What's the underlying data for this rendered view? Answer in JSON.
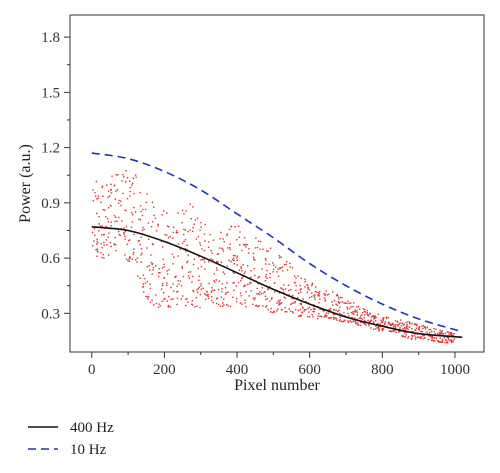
{
  "chart_data": {
    "type": "scatter",
    "xlabel": "Pixel number",
    "ylabel": "Power (a.u.)",
    "xlim": [
      -60,
      1080
    ],
    "ylim": [
      0.09,
      1.92
    ],
    "xticks": [
      0,
      200,
      400,
      600,
      800,
      1000
    ],
    "xtick_labels": [
      "0",
      "200",
      "400",
      "600",
      "800",
      "1000"
    ],
    "yticks": [
      0.3,
      0.6,
      0.9,
      1.2,
      1.5,
      1.8
    ],
    "ytick_labels": [
      "0.3",
      "0.6",
      "0.9",
      "1.2",
      "1.5",
      "1.8"
    ],
    "grid": false,
    "legend_position": "below-left",
    "series": [
      {
        "name": "400 Hz",
        "style": "solid",
        "color": "#111111",
        "x": [
          0,
          100,
          200,
          300,
          400,
          500,
          600,
          700,
          800,
          900,
          1020
        ],
        "y": [
          0.77,
          0.75,
          0.69,
          0.61,
          0.52,
          0.43,
          0.35,
          0.28,
          0.23,
          0.19,
          0.17
        ]
      },
      {
        "name": "10 Hz",
        "style": "dashed",
        "color": "#2233bb",
        "x": [
          0,
          100,
          200,
          300,
          400,
          500,
          600,
          700,
          800,
          900,
          1020
        ],
        "y": [
          1.17,
          1.14,
          1.07,
          0.97,
          0.84,
          0.71,
          0.57,
          0.45,
          0.35,
          0.27,
          0.2
        ]
      },
      {
        "name": "",
        "style": "dots",
        "color": "#e03030",
        "x": [
          0,
          20,
          40,
          60,
          80,
          100,
          120,
          140,
          160,
          180,
          200,
          220,
          240,
          260,
          280,
          300,
          320,
          340,
          360,
          380,
          400,
          420,
          440,
          460,
          480,
          500,
          520,
          540,
          560,
          580,
          600,
          620,
          640,
          660,
          680,
          700,
          720,
          740,
          760,
          780,
          800,
          820,
          840,
          860,
          880,
          900,
          920,
          940,
          960,
          980,
          1000
        ],
        "y_low": [
          0.55,
          0.6,
          0.6,
          0.65,
          0.62,
          0.58,
          0.55,
          0.4,
          0.35,
          0.33,
          0.34,
          0.33,
          0.35,
          0.34,
          0.33,
          0.33,
          0.38,
          0.35,
          0.33,
          0.33,
          0.34,
          0.34,
          0.32,
          0.33,
          0.32,
          0.3,
          0.32,
          0.3,
          0.29,
          0.28,
          0.28,
          0.27,
          0.28,
          0.27,
          0.26,
          0.25,
          0.25,
          0.23,
          0.22,
          0.21,
          0.2,
          0.2,
          0.19,
          0.17,
          0.16,
          0.16,
          0.16,
          0.15,
          0.14,
          0.14,
          0.14
        ],
        "y_high": [
          1.05,
          1.0,
          1.03,
          1.05,
          1.08,
          1.08,
          1.06,
          0.98,
          0.95,
          0.9,
          0.88,
          0.82,
          0.85,
          0.88,
          0.95,
          0.85,
          0.8,
          0.74,
          0.77,
          0.78,
          0.82,
          0.75,
          0.74,
          0.72,
          0.68,
          0.66,
          0.63,
          0.58,
          0.55,
          0.52,
          0.5,
          0.46,
          0.43,
          0.42,
          0.4,
          0.38,
          0.36,
          0.34,
          0.32,
          0.3,
          0.29,
          0.28,
          0.27,
          0.26,
          0.25,
          0.24,
          0.23,
          0.22,
          0.21,
          0.2,
          0.19
        ]
      }
    ],
    "legend": [
      {
        "label": "400 Hz",
        "style": "solid",
        "color": "#111111"
      },
      {
        "label": "10 Hz",
        "style": "dashed",
        "color": "#2233bb"
      }
    ]
  }
}
